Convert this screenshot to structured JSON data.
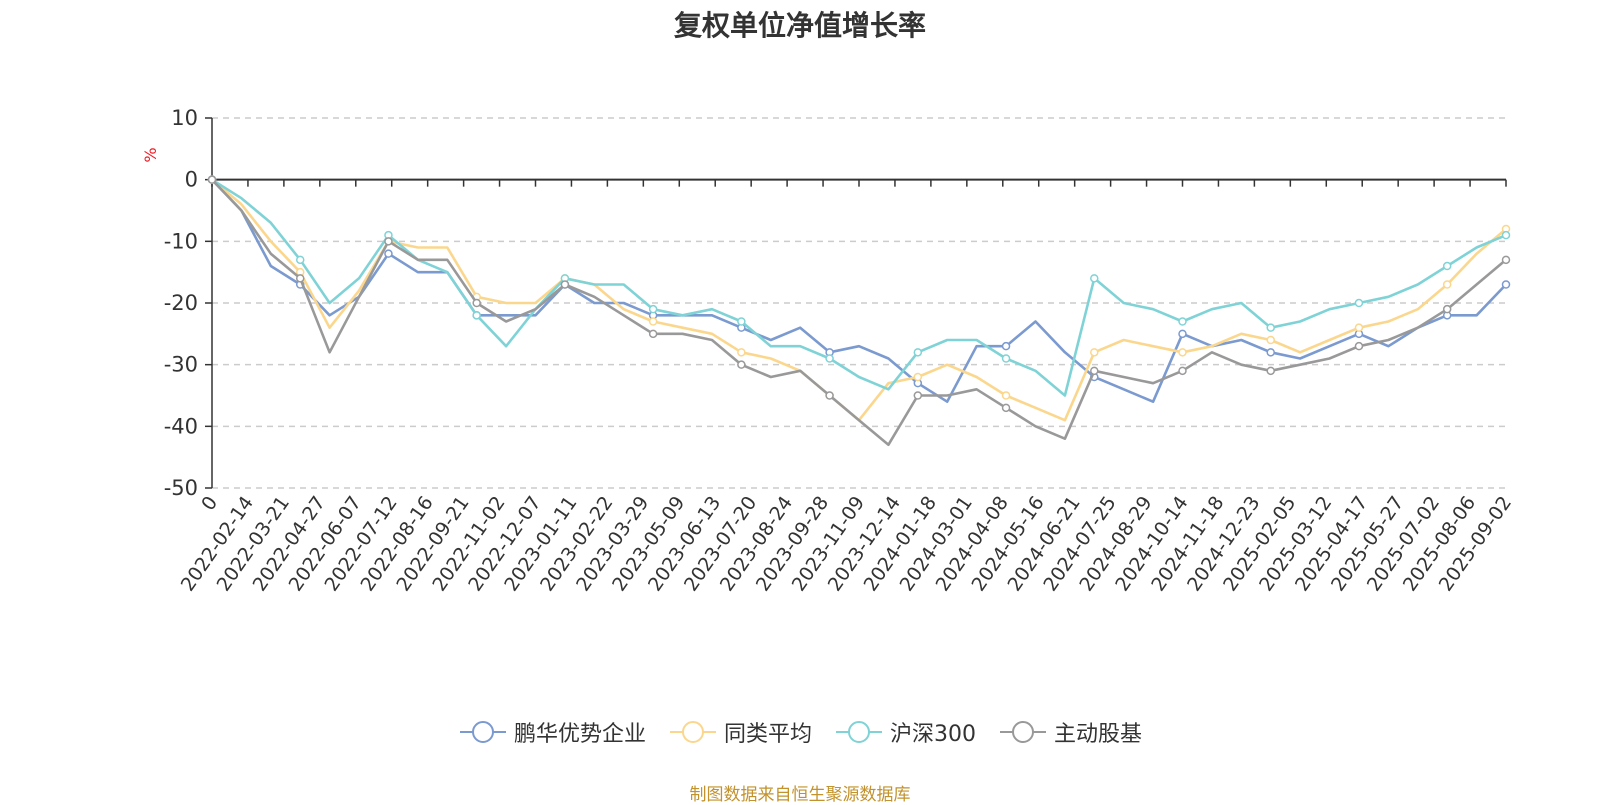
{
  "chart_data": {
    "type": "line",
    "title": "复权单位净值增长率",
    "y_unit": "%",
    "ylim": [
      -50,
      10
    ],
    "y_ticks": [
      10,
      0,
      -10,
      -20,
      -30,
      -40,
      -50
    ],
    "grid": true,
    "legend_position": "bottom",
    "x_tick_labels": [
      "0",
      "2022-02-14",
      "2022-03-21",
      "2022-04-27",
      "2022-06-07",
      "2022-07-12",
      "2022-08-16",
      "2022-09-21",
      "2022-11-02",
      "2022-12-07",
      "2023-01-11",
      "2023-02-22",
      "2023-03-29",
      "2023-05-09",
      "2023-06-13",
      "2023-07-20",
      "2023-08-24",
      "2023-09-28",
      "2023-11-09",
      "2023-12-14",
      "2024-01-18",
      "2024-03-01",
      "2024-04-08",
      "2024-05-16",
      "2024-06-21",
      "2024-07-25",
      "2024-08-29",
      "2024-10-14",
      "2024-11-18",
      "2024-12-23",
      "2025-02-05",
      "2025-03-12",
      "2025-04-17",
      "2025-05-27",
      "2025-07-02",
      "2025-08-06",
      "2025-09-02"
    ],
    "series": [
      {
        "name": "鹏华优势企业",
        "color": "#7b9ad0",
        "values": [
          0,
          -5,
          -14,
          -17,
          -22,
          -19,
          -12,
          -15,
          -15,
          -22,
          -22,
          -22,
          -17,
          -20,
          -20,
          -22,
          -22,
          -22,
          -24,
          -26,
          -24,
          -28,
          -27,
          -29,
          -33,
          -36,
          -27,
          -27,
          -23,
          -28,
          -32,
          -34,
          -36,
          -25,
          -27,
          -26,
          -28,
          -29,
          -27,
          -25,
          -27,
          -24,
          -22,
          -22,
          -17
        ]
      },
      {
        "name": "同类平均",
        "color": "#fbd78e",
        "values": [
          0,
          -4,
          -10,
          -15,
          -24,
          -18,
          -10,
          -11,
          -11,
          -19,
          -20,
          -20,
          -16,
          -17,
          -21,
          -23,
          -24,
          -25,
          -28,
          -29,
          -31,
          -35,
          -39,
          -33,
          -32,
          -30,
          -32,
          -35,
          -37,
          -39,
          -28,
          -26,
          -27,
          -28,
          -27,
          -25,
          -26,
          -28,
          -26,
          -24,
          -23,
          -21,
          -17,
          -12,
          -8
        ]
      },
      {
        "name": "沪深300",
        "color": "#7fd3d6",
        "values": [
          0,
          -3,
          -7,
          -13,
          -20,
          -16,
          -9,
          -13,
          -15,
          -22,
          -27,
          -21,
          -16,
          -17,
          -17,
          -21,
          -22,
          -21,
          -23,
          -27,
          -27,
          -29,
          -32,
          -34,
          -28,
          -26,
          -26,
          -29,
          -31,
          -35,
          -16,
          -20,
          -21,
          -23,
          -21,
          -20,
          -24,
          -23,
          -21,
          -20,
          -19,
          -17,
          -14,
          -11,
          -9
        ]
      },
      {
        "name": "主动股基",
        "color": "#999999",
        "values": [
          0,
          -5,
          -12,
          -16,
          -28,
          -19,
          -10,
          -13,
          -13,
          -20,
          -23,
          -21,
          -17,
          -19,
          -22,
          -25,
          -25,
          -26,
          -30,
          -32,
          -31,
          -35,
          -39,
          -43,
          -35,
          -35,
          -34,
          -37,
          -40,
          -42,
          -31,
          -32,
          -33,
          -31,
          -28,
          -30,
          -31,
          -30,
          -29,
          -27,
          -26,
          -24,
          -21,
          -17,
          -13
        ]
      }
    ]
  },
  "legend": {
    "items": [
      "鹏华优势企业",
      "同类平均",
      "沪深300",
      "主动股基"
    ]
  },
  "source_note": "制图数据来自恒生聚源数据库"
}
